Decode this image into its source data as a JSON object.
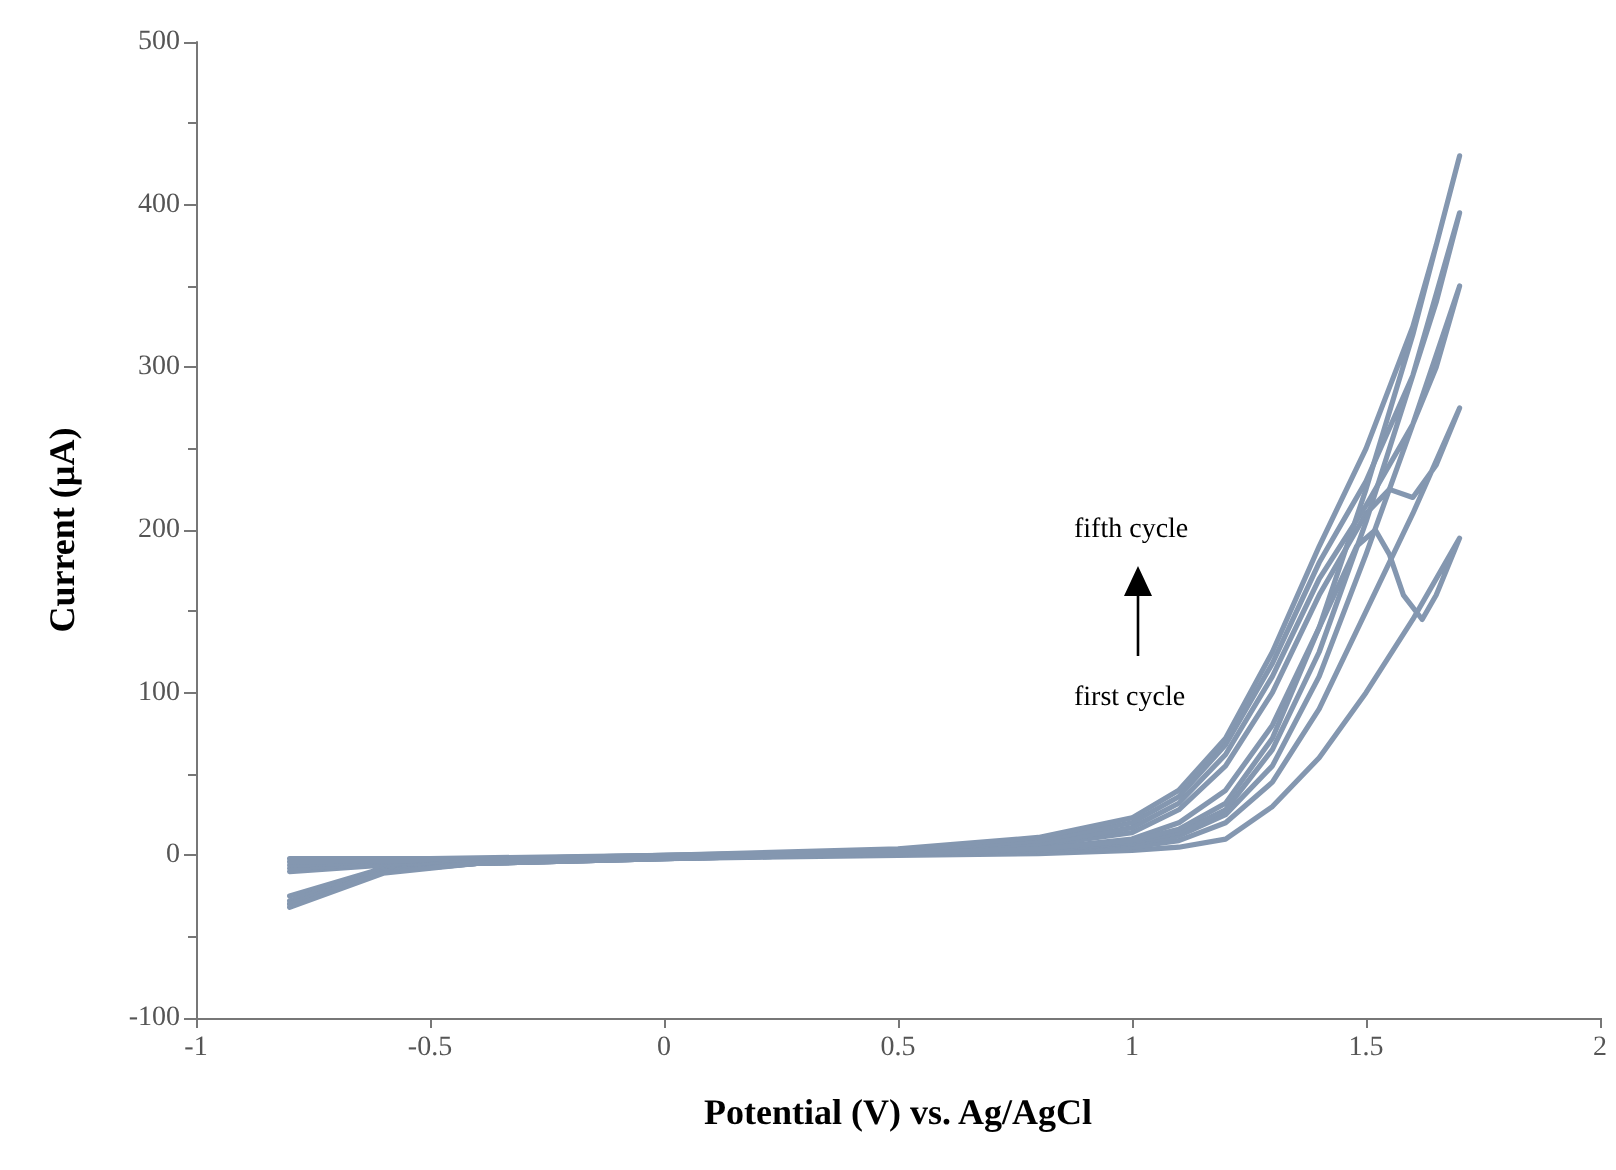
{
  "chart_data": {
    "type": "line",
    "xlabel": "Potential (V) vs. Ag/AgCl",
    "ylabel": "Current (µA)",
    "xlim": [
      -1,
      2
    ],
    "xticks": [
      -1,
      -0.5,
      0,
      0.5,
      1,
      1.5,
      2
    ],
    "ylim": [
      -100,
      500
    ],
    "yticks": [
      -100,
      0,
      100,
      200,
      300,
      400,
      500
    ],
    "grid": false,
    "marker": "none",
    "line_style": "solid",
    "annotations": [
      "fifth cycle",
      "first cycle"
    ],
    "series": [
      {
        "color": "#8497b0",
        "x": [
          -0.8,
          -0.6,
          -0.4,
          0,
          0.5,
          0.8,
          1.0,
          1.1,
          1.2,
          1.3,
          1.4,
          1.5,
          1.6,
          1.7,
          1.65,
          1.62,
          1.58,
          1.55,
          1.52,
          1.48,
          1.4,
          1.3,
          1.2,
          1.1,
          1.0,
          0.8,
          0.5,
          0,
          -0.5,
          -0.8
        ],
        "values": [
          -25,
          -8,
          -5,
          -2,
          0,
          1,
          3,
          5,
          10,
          30,
          60,
          100,
          145,
          195,
          160,
          145,
          160,
          185,
          200,
          190,
          140,
          80,
          40,
          20,
          10,
          4,
          1,
          -1,
          -4,
          -10
        ]
      },
      {
        "color": "#8497b0",
        "x": [
          -0.8,
          -0.6,
          -0.4,
          0,
          0.5,
          0.8,
          1.0,
          1.1,
          1.2,
          1.3,
          1.4,
          1.5,
          1.6,
          1.7,
          1.65,
          1.6,
          1.55,
          1.5,
          1.4,
          1.3,
          1.2,
          1.1,
          1.0,
          0.8,
          0.5,
          0,
          -0.5,
          -0.8
        ],
        "values": [
          -28,
          -9,
          -5,
          -2,
          1,
          2,
          5,
          9,
          20,
          45,
          90,
          150,
          210,
          275,
          240,
          220,
          225,
          210,
          160,
          100,
          55,
          28,
          14,
          6,
          2,
          -1,
          -4,
          -8
        ]
      },
      {
        "color": "#8497b0",
        "x": [
          -0.8,
          -0.6,
          -0.4,
          0,
          0.5,
          0.8,
          1.0,
          1.1,
          1.2,
          1.3,
          1.4,
          1.5,
          1.6,
          1.7,
          1.65,
          1.6,
          1.55,
          1.5,
          1.4,
          1.3,
          1.2,
          1.1,
          1.0,
          0.8,
          0.5,
          0,
          -0.5,
          -0.8
        ],
        "values": [
          -30,
          -10,
          -5,
          -2,
          1,
          3,
          7,
          12,
          25,
          55,
          110,
          185,
          265,
          350,
          300,
          265,
          240,
          215,
          170,
          110,
          62,
          32,
          17,
          7,
          2,
          0,
          -3,
          -6
        ]
      },
      {
        "color": "#8497b0",
        "x": [
          -0.8,
          -0.6,
          -0.4,
          0,
          0.5,
          0.8,
          1.0,
          1.1,
          1.2,
          1.3,
          1.4,
          1.5,
          1.6,
          1.7,
          1.65,
          1.6,
          1.5,
          1.4,
          1.3,
          1.2,
          1.1,
          1.0,
          0.8,
          0.5,
          0,
          -0.5,
          -0.8
        ],
        "values": [
          -30,
          -10,
          -5,
          -2,
          1,
          3,
          8,
          14,
          28,
          65,
          125,
          205,
          295,
          395,
          340,
          295,
          230,
          180,
          118,
          68,
          36,
          20,
          9,
          3,
          0,
          -3,
          -4
        ]
      },
      {
        "color": "#8497b0",
        "x": [
          -0.8,
          -0.6,
          -0.4,
          0,
          0.5,
          0.8,
          1.0,
          1.1,
          1.2,
          1.3,
          1.4,
          1.5,
          1.6,
          1.7,
          1.65,
          1.6,
          1.5,
          1.4,
          1.3,
          1.2,
          1.1,
          1.0,
          0.8,
          0.5,
          0,
          -0.5,
          -0.8
        ],
        "values": [
          -32,
          -11,
          -5,
          -2,
          1,
          4,
          9,
          16,
          32,
          72,
          140,
          225,
          320,
          430,
          375,
          325,
          250,
          190,
          125,
          72,
          40,
          23,
          11,
          4,
          0,
          -2,
          -2
        ]
      }
    ]
  }
}
